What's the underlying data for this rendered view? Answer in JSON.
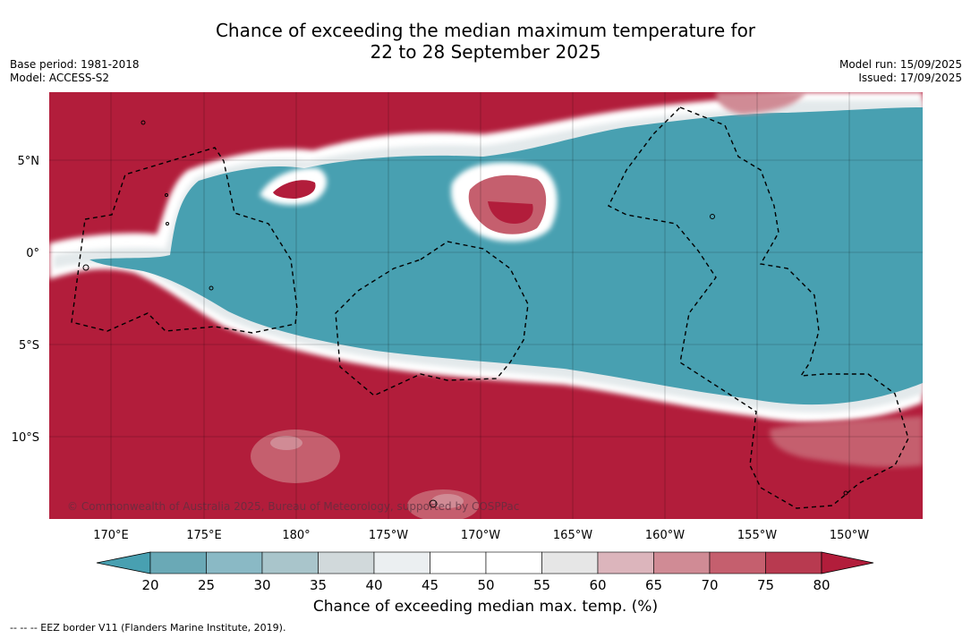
{
  "title": "Chance of exceeding the median maximum temperature for\n22 to 28 September 2025",
  "meta_left": {
    "base_period": "Base period: 1981-2018",
    "model": "Model: ACCESS-S2"
  },
  "meta_right": {
    "model_run": "Model run: 15/09/2025",
    "issued": "Issued: 17/09/2025"
  },
  "map": {
    "lon_labels": [
      "170°E",
      "175°E",
      "180°",
      "175°W",
      "170°W",
      "165°W",
      "160°W",
      "155°W",
      "150°W"
    ],
    "lat_labels": [
      "5°N",
      "0°",
      "5°S",
      "10°S"
    ],
    "copyright": "© Commonwealth of Australia 2025, Bureau of Meteorology, supported by COSPPac"
  },
  "colorbar": {
    "ticks": [
      "20",
      "25",
      "30",
      "35",
      "40",
      "45",
      "50",
      "55",
      "60",
      "65",
      "70",
      "75",
      "80"
    ],
    "colors": [
      "#48a0b1",
      "#6aa9b6",
      "#8ab9c5",
      "#a9c5cb",
      "#d1d9db",
      "#ebeff1",
      "#ffffff",
      "#ffffff",
      "#e6e6e6",
      "#dcb5bc",
      "#d08b95",
      "#c55f6e",
      "#b83a50",
      "#b21d3b"
    ],
    "title": "Chance of exceeding median max. temp. (%)"
  },
  "footer": "--  --  -- EEZ border V11 (Flanders Marine Institute, 2019)."
}
